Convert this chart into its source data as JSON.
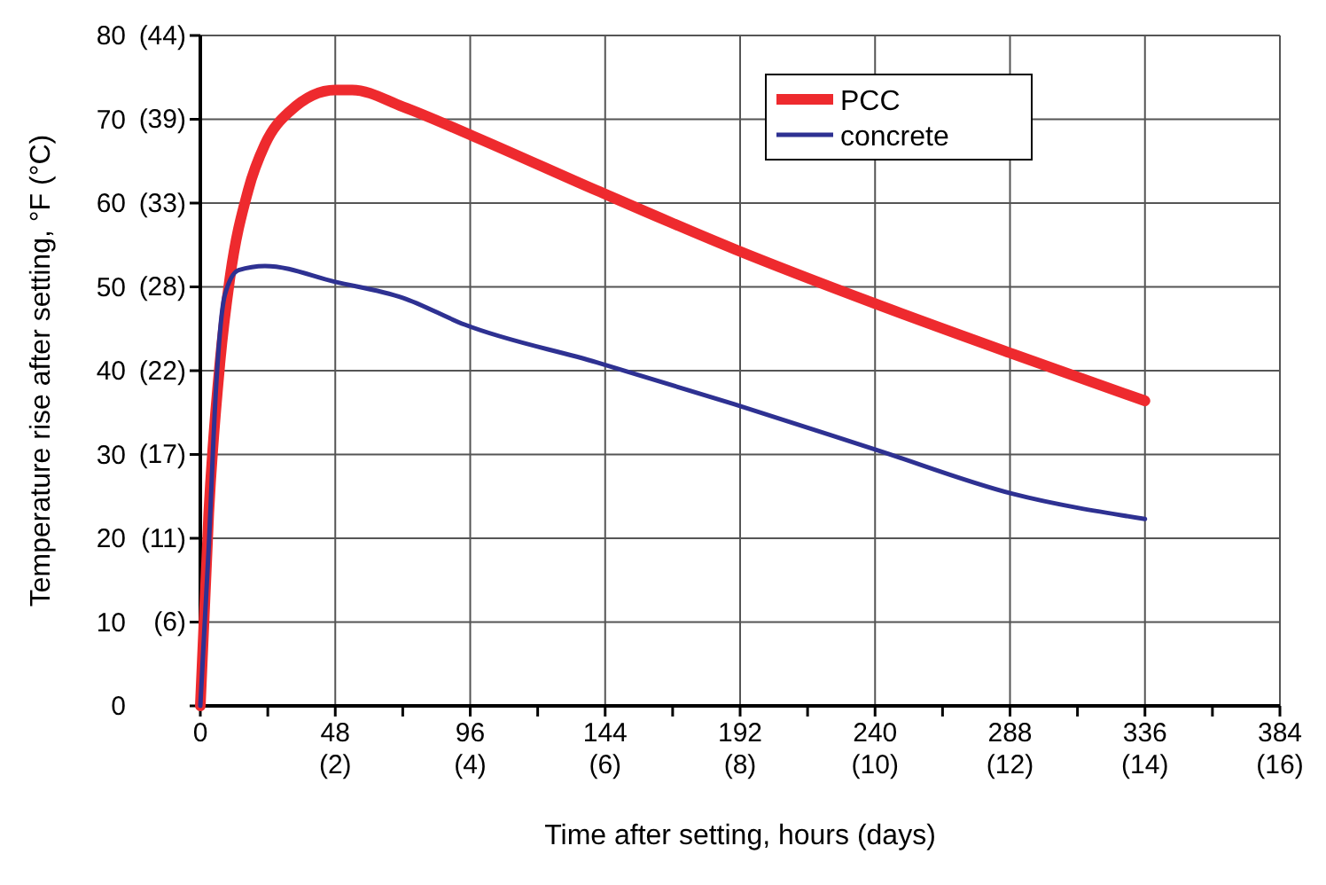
{
  "chart_data": {
    "type": "line",
    "xlabel": "Time after setting, hours (days)",
    "ylabel": "Temperature rise after setting, °F (°C)",
    "xlim": [
      0,
      384
    ],
    "ylim": [
      0,
      80
    ],
    "xticks": [
      0,
      {
        "value": 24,
        "label": null
      },
      48,
      {
        "value": 72,
        "label": null
      },
      96,
      {
        "value": 120,
        "label": null
      },
      144,
      {
        "value": 168,
        "label": null
      },
      192,
      {
        "value": 216,
        "label": null
      },
      240,
      {
        "value": 264,
        "label": null
      },
      288,
      {
        "value": 312,
        "label": null
      },
      336,
      {
        "value": 360,
        "label": null
      },
      384
    ],
    "x2lim": [
      0,
      16
    ],
    "x2ticks": [
      {
        "value": 2,
        "label": "(2)"
      },
      {
        "value": 4,
        "label": "(4)"
      },
      {
        "value": 6,
        "label": "(6)"
      },
      {
        "value": 8,
        "label": "(8)"
      },
      {
        "value": 10,
        "label": "(10)"
      },
      {
        "value": 12,
        "label": "(12)"
      },
      {
        "value": 14,
        "label": "(14)"
      },
      {
        "value": 16,
        "label": "(16)"
      }
    ],
    "yticks": [
      0,
      10,
      20,
      30,
      40,
      50,
      60,
      70,
      80
    ],
    "y2lim": [
      0,
      44.44
    ],
    "y2ticks": [
      {
        "value": 5.56,
        "label": "(6)"
      },
      {
        "value": 11.11,
        "label": "(11)"
      },
      {
        "value": 16.67,
        "label": "(17)"
      },
      {
        "value": 22.22,
        "label": "(22)"
      },
      {
        "value": 27.78,
        "label": "(28)"
      },
      {
        "value": 33.33,
        "label": "(33)"
      },
      {
        "value": 38.89,
        "label": "(39)"
      },
      {
        "value": 44.44,
        "label": "(44)"
      }
    ],
    "grid": true,
    "legend": "top right",
    "marker": "none",
    "line_style": "solid",
    "series": [
      {
        "name": "PCC",
        "color": "#ee2a2e",
        "x": [
          0,
          3,
          7,
          10.5,
          17,
          23,
          32,
          48,
          54,
          72,
          97,
          141,
          190,
          240,
          289,
          336
        ],
        "values": [
          0,
          23,
          41,
          51,
          61.5,
          67,
          71,
          73.5,
          73.5,
          71.5,
          68,
          61.5,
          54.5,
          48,
          42,
          36.4
        ]
      },
      {
        "name": "concrete",
        "color": "#2e3192",
        "x": [
          0,
          3,
          5.6,
          8.7,
          13.6,
          23,
          48,
          72,
          94,
          141,
          190,
          240,
          289,
          336
        ],
        "values": [
          0,
          19,
          38,
          49,
          52,
          52.5,
          50.6,
          48.7,
          45.5,
          41,
          36,
          30.6,
          25.3,
          22.3
        ]
      }
    ]
  }
}
